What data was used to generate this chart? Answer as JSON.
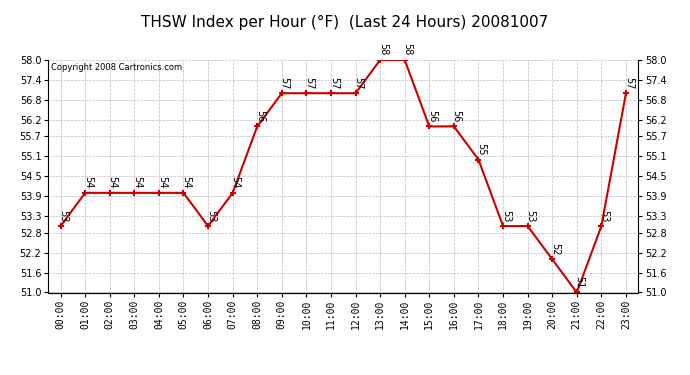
{
  "title": "THSW Index per Hour (°F)  (Last 24 Hours) 20081007",
  "copyright": "Copyright 2008 Cartronics.com",
  "hours": [
    "00:00",
    "01:00",
    "02:00",
    "03:00",
    "04:00",
    "05:00",
    "06:00",
    "07:00",
    "08:00",
    "09:00",
    "10:00",
    "11:00",
    "12:00",
    "13:00",
    "14:00",
    "15:00",
    "16:00",
    "17:00",
    "18:00",
    "19:00",
    "20:00",
    "21:00",
    "22:00",
    "23:00"
  ],
  "values": [
    53,
    54,
    54,
    54,
    54,
    54,
    53,
    54,
    56,
    57,
    57,
    57,
    57,
    58,
    58,
    56,
    56,
    55,
    53,
    53,
    52,
    51,
    53,
    57
  ],
  "ylim": [
    51.0,
    58.0
  ],
  "yticks": [
    51.0,
    51.6,
    52.2,
    52.8,
    53.3,
    53.9,
    54.5,
    55.1,
    55.7,
    56.2,
    56.8,
    57.4,
    58.0
  ],
  "line_color": "#cc0000",
  "marker_color": "#cc0000",
  "bg_color": "#ffffff",
  "grid_color": "#bbbbbb",
  "title_fontsize": 11,
  "tick_fontsize": 7,
  "annot_fontsize": 7,
  "copyright_fontsize": 6
}
